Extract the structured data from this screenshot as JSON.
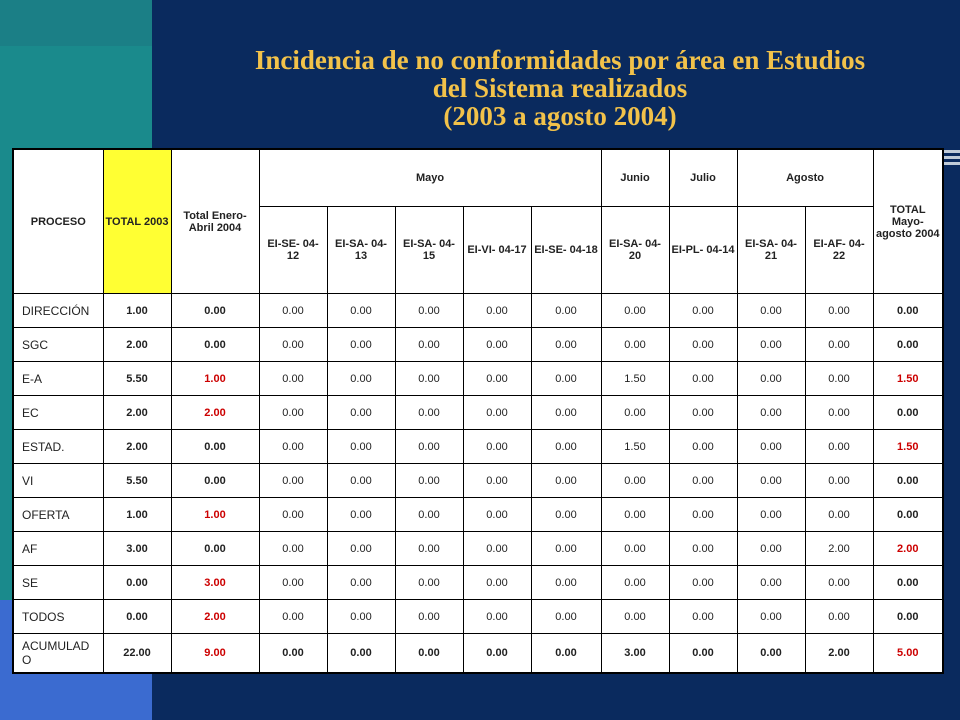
{
  "title": {
    "line1": "Incidencia de no conformidades por área en Estudios",
    "line2": "del Sistema realizados",
    "line3": "(2003 a agosto 2004)"
  },
  "header": {
    "proceso": "PROCESO",
    "total2003": "TOTAL 2003",
    "total_enero_abril": "Total Enero- Abril 2004",
    "mayo": "Mayo",
    "junio": "Junio",
    "julio": "Julio",
    "agosto": "Agosto",
    "total_mayo_agosto": "TOTAL Mayo- agosto 2004",
    "codes": [
      "EI-SE- 04-12",
      "EI-SA- 04-13",
      "EI-SA- 04-15",
      "EI-VI- 04-17",
      "EI-SE- 04-18",
      "EI-SA- 04-20",
      "EI-PL- 04-14",
      "EI-SA- 04-21",
      "EI-AF- 04-22"
    ]
  },
  "rows": [
    {
      "proceso": "DIRECCIÓN",
      "total2003": "1.00",
      "enero_abril": "0.00",
      "vals": [
        "0.00",
        "0.00",
        "0.00",
        "0.00",
        "0.00",
        "0.00",
        "0.00",
        "0.00",
        "0.00"
      ],
      "total": "0.00"
    },
    {
      "proceso": "SGC",
      "total2003": "2.00",
      "enero_abril": "0.00",
      "vals": [
        "0.00",
        "0.00",
        "0.00",
        "0.00",
        "0.00",
        "0.00",
        "0.00",
        "0.00",
        "0.00"
      ],
      "total": "0.00"
    },
    {
      "proceso": "E-A",
      "total2003": "5.50",
      "enero_abril": "1.00",
      "vals": [
        "0.00",
        "0.00",
        "0.00",
        "0.00",
        "0.00",
        "1.50",
        "0.00",
        "0.00",
        "0.00"
      ],
      "total": "1.50"
    },
    {
      "proceso": "EC",
      "total2003": "2.00",
      "enero_abril": "2.00",
      "vals": [
        "0.00",
        "0.00",
        "0.00",
        "0.00",
        "0.00",
        "0.00",
        "0.00",
        "0.00",
        "0.00"
      ],
      "total": "0.00"
    },
    {
      "proceso": "ESTAD.",
      "total2003": "2.00",
      "enero_abril": "0.00",
      "vals": [
        "0.00",
        "0.00",
        "0.00",
        "0.00",
        "0.00",
        "1.50",
        "0.00",
        "0.00",
        "0.00"
      ],
      "total": "1.50"
    },
    {
      "proceso": "VI",
      "total2003": "5.50",
      "enero_abril": "0.00",
      "vals": [
        "0.00",
        "0.00",
        "0.00",
        "0.00",
        "0.00",
        "0.00",
        "0.00",
        "0.00",
        "0.00"
      ],
      "total": "0.00"
    },
    {
      "proceso": "OFERTA",
      "total2003": "1.00",
      "enero_abril": "1.00",
      "vals": [
        "0.00",
        "0.00",
        "0.00",
        "0.00",
        "0.00",
        "0.00",
        "0.00",
        "0.00",
        "0.00"
      ],
      "total": "0.00"
    },
    {
      "proceso": "AF",
      "total2003": "3.00",
      "enero_abril": "0.00",
      "vals": [
        "0.00",
        "0.00",
        "0.00",
        "0.00",
        "0.00",
        "0.00",
        "0.00",
        "0.00",
        "2.00"
      ],
      "total": "2.00"
    },
    {
      "proceso": "SE",
      "total2003": "0.00",
      "enero_abril": "3.00",
      "vals": [
        "0.00",
        "0.00",
        "0.00",
        "0.00",
        "0.00",
        "0.00",
        "0.00",
        "0.00",
        "0.00"
      ],
      "total": "0.00"
    },
    {
      "proceso": "TODOS",
      "total2003": "0.00",
      "enero_abril": "2.00",
      "vals": [
        "0.00",
        "0.00",
        "0.00",
        "0.00",
        "0.00",
        "0.00",
        "0.00",
        "0.00",
        "0.00"
      ],
      "total": "0.00"
    }
  ],
  "acumulado": {
    "proceso": "ACUMULAD O",
    "total2003": "22.00",
    "enero_abril": "9.00",
    "vals": [
      "0.00",
      "0.00",
      "0.00",
      "0.00",
      "0.00",
      "3.00",
      "0.00",
      "0.00",
      "2.00"
    ],
    "total": "5.00"
  },
  "colors": {
    "background": "#0a2a5e",
    "title": "#f2c24a",
    "highlight_yellow": "#ffff33",
    "red_value": "#cc0000"
  }
}
